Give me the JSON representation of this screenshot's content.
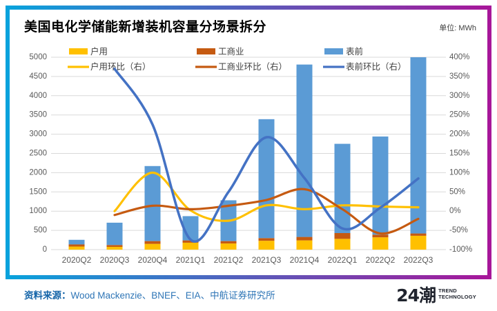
{
  "header": {
    "title": "美国电化学储能新增装机容量分场景拆分",
    "unit_label": "单位: MWh"
  },
  "footer": {
    "source_label": "资料来源：",
    "sources": "Wood Mackenzie、BNEF、EIA、中航证券研究所",
    "brand": "24潮",
    "brand_sub1": "TREND",
    "brand_sub2": "TECHNOLOGY"
  },
  "colors": {
    "residential_bar": "#FFC000",
    "commercial_bar": "#C55A11",
    "front_meter_bar": "#5B9BD5",
    "residential_line": "#FFC000",
    "commercial_line": "#C55A11",
    "front_meter_line": "#4472C4",
    "grid": "#D9D9D9",
    "axis_text": "#595959",
    "legend_text": "#404040",
    "border_left": "#09A2DC",
    "border_right": "#A7179A"
  },
  "chart_data": {
    "type": "bar",
    "subtype": "stacked-bars-with-lines",
    "categories": [
      "2020Q2",
      "2020Q3",
      "2020Q4",
      "2021Q1",
      "2021Q2",
      "2021Q3",
      "2021Q4",
      "2022Q1",
      "2022Q2",
      "2022Q3"
    ],
    "bar_series": [
      {
        "name": "户用",
        "color": "#FFC000",
        "values": [
          80,
          72,
          150,
          180,
          160,
          230,
          240,
          280,
          320,
          360
        ]
      },
      {
        "name": "工商业",
        "color": "#C55A11",
        "values": [
          55,
          48,
          72,
          60,
          62,
          70,
          90,
          150,
          70,
          60
        ]
      },
      {
        "name": "表前",
        "color": "#5B9BD5",
        "values": [
          120,
          580,
          1950,
          630,
          1060,
          3090,
          4480,
          2320,
          2550,
          4580
        ]
      }
    ],
    "bar_totals": [
      255,
      700,
      2172,
      870,
      1282,
      3390,
      4810,
      2750,
      2940,
      5000
    ],
    "line_series": [
      {
        "name": "户用环比（右）",
        "color": "#FFC000",
        "values": [
          null,
          0,
          100,
          2,
          -25,
          15,
          5,
          15,
          12,
          10
        ]
      },
      {
        "name": "工商业环比（右）",
        "color": "#C55A11",
        "values": [
          null,
          -10,
          14,
          5,
          14,
          29,
          57,
          5,
          -58,
          -20
        ]
      },
      {
        "name": "表前环比（右）",
        "color": "#4472C4",
        "values": [
          null,
          370,
          225,
          -74,
          50,
          192,
          86,
          -45,
          9,
          85
        ]
      }
    ],
    "left_axis": {
      "min": 0,
      "max": 5000,
      "step": 500,
      "ticks": [
        "0",
        "500",
        "1000",
        "1500",
        "2000",
        "2500",
        "3000",
        "3500",
        "4000",
        "4500",
        "5000"
      ]
    },
    "right_axis": {
      "min": -100,
      "max": 400,
      "step": 50,
      "suffix": "%",
      "ticks": [
        "-100%",
        "-50%",
        "0%",
        "50%",
        "100%",
        "150%",
        "200%",
        "250%",
        "300%",
        "350%",
        "400%"
      ]
    },
    "grid": true,
    "legend_position": "top"
  }
}
